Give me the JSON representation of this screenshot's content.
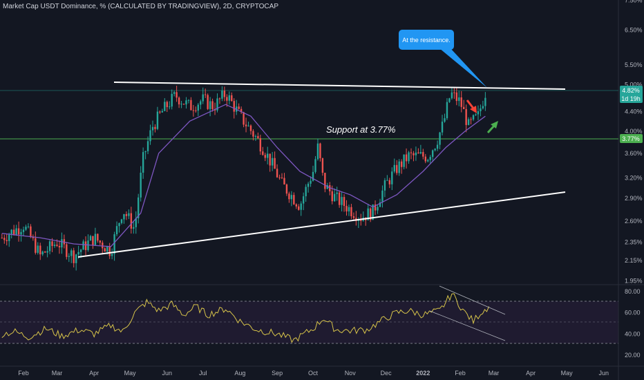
{
  "header": {
    "title": "Market Cap USDT Dominance, % (CALCULATED BY TRADINGVIEW), 2D, CRYPTOCAP"
  },
  "colors": {
    "background": "#131722",
    "up": "#26a69a",
    "down": "#ef5350",
    "ma": "#7e57c2",
    "rsi": "#d7c44a",
    "trendline": "#ffffff",
    "support_line": "#4caf50",
    "callout": "#2196f3"
  },
  "chart_data": [
    {
      "type": "candlestick",
      "title": "Market Cap USDT Dominance, % (CALCULATED BY TRADINGVIEW), 2D, CRYPTOCAP",
      "price_axis_labels": [
        "7.50%",
        "6.50%",
        "5.50%",
        "5.00%",
        "4.40%",
        "4.00%",
        "3.60%",
        "3.20%",
        "2.90%",
        "2.60%",
        "2.35%",
        "2.15%",
        "1.95%"
      ],
      "price_ticks": [
        7.5,
        6.5,
        5.5,
        5.0,
        4.4,
        4.0,
        3.6,
        3.2,
        2.9,
        2.6,
        2.35,
        2.15,
        1.95
      ],
      "x_tick_labels": [
        "Feb",
        "Mar",
        "Apr",
        "May",
        "Jun",
        "Jul",
        "Aug",
        "Sep",
        "Oct",
        "Nov",
        "Dec",
        "2022",
        "Feb",
        "Mar",
        "Apr",
        "May",
        "Jun"
      ],
      "x_ticks": [
        "2021-02-01",
        "2021-03-01",
        "2021-04-01",
        "2021-05-01",
        "2021-06-01",
        "2021-07-01",
        "2021-08-01",
        "2021-09-01",
        "2021-10-01",
        "2021-11-01",
        "2021-12-01",
        "2022-01-01",
        "2022-02-01",
        "2022-03-01",
        "2022-04-01",
        "2022-05-01",
        "2022-06-01"
      ],
      "close_path": [
        [
          "2021-01-14",
          2.4
        ],
        [
          "2021-02-01",
          2.55
        ],
        [
          "2021-02-15",
          2.2
        ],
        [
          "2021-03-01",
          2.35
        ],
        [
          "2021-03-15",
          2.2
        ],
        [
          "2021-04-01",
          2.4
        ],
        [
          "2021-04-15",
          2.25
        ],
        [
          "2021-04-25",
          2.75
        ],
        [
          "2021-05-05",
          2.5
        ],
        [
          "2021-05-12",
          3.5
        ],
        [
          "2021-05-20",
          4.1
        ],
        [
          "2021-05-28",
          4.4
        ],
        [
          "2021-06-08",
          4.75
        ],
        [
          "2021-06-20",
          4.5
        ],
        [
          "2021-07-01",
          4.65
        ],
        [
          "2021-07-10",
          4.5
        ],
        [
          "2021-07-20",
          4.8
        ],
        [
          "2021-08-01",
          4.3
        ],
        [
          "2021-08-20",
          3.7
        ],
        [
          "2021-09-05",
          3.1
        ],
        [
          "2021-09-20",
          2.8
        ],
        [
          "2021-10-01",
          3.3
        ],
        [
          "2021-10-05",
          3.7
        ],
        [
          "2021-10-10",
          3.1
        ],
        [
          "2021-10-20",
          2.9
        ],
        [
          "2021-11-01",
          2.75
        ],
        [
          "2021-11-10",
          2.65
        ],
        [
          "2021-11-20",
          2.72
        ],
        [
          "2021-12-01",
          3.1
        ],
        [
          "2021-12-10",
          3.35
        ],
        [
          "2021-12-20",
          3.55
        ],
        [
          "2022-01-05",
          3.55
        ],
        [
          "2022-01-12",
          3.8
        ],
        [
          "2022-01-18",
          4.15
        ],
        [
          "2022-01-24",
          4.8
        ],
        [
          "2022-02-01",
          4.6
        ],
        [
          "2022-02-08",
          4.1
        ],
        [
          "2022-02-16",
          4.3
        ],
        [
          "2022-02-22",
          4.82
        ]
      ],
      "moving_average": [
        [
          "2021-01-14",
          2.45
        ],
        [
          "2021-02-15",
          2.4
        ],
        [
          "2021-03-15",
          2.33
        ],
        [
          "2021-04-15",
          2.3
        ],
        [
          "2021-05-10",
          2.7
        ],
        [
          "2021-05-25",
          3.6
        ],
        [
          "2021-06-20",
          4.2
        ],
        [
          "2021-07-20",
          4.55
        ],
        [
          "2021-08-10",
          4.3
        ],
        [
          "2021-09-01",
          3.7
        ],
        [
          "2021-09-20",
          3.3
        ],
        [
          "2021-10-15",
          3.05
        ],
        [
          "2021-11-01",
          2.95
        ],
        [
          "2021-11-20",
          2.78
        ],
        [
          "2021-12-10",
          2.95
        ],
        [
          "2022-01-01",
          3.3
        ],
        [
          "2022-01-20",
          3.7
        ],
        [
          "2022-02-05",
          4.0
        ],
        [
          "2022-02-22",
          4.3
        ]
      ],
      "last_price": "4.82%",
      "countdown": "1d 19h",
      "support_label": "3.77%",
      "annotations": {
        "support_text": "Support at 3.77%",
        "callout_text": "At the resistance."
      }
    },
    {
      "type": "line",
      "name": "RSI",
      "y_axis_labels": [
        "80.00",
        "60.00",
        "40.00",
        "20.00"
      ],
      "y_ticks": [
        80,
        60,
        40,
        20
      ],
      "band": [
        30,
        70
      ],
      "points": [
        [
          "2021-01-14",
          40
        ],
        [
          "2021-01-25",
          42
        ],
        [
          "2021-02-05",
          37
        ],
        [
          "2021-02-20",
          45
        ],
        [
          "2021-03-05",
          38
        ],
        [
          "2021-03-20",
          44
        ],
        [
          "2021-04-01",
          40
        ],
        [
          "2021-04-15",
          48
        ],
        [
          "2021-04-25",
          42
        ],
        [
          "2021-05-05",
          60
        ],
        [
          "2021-05-15",
          70
        ],
        [
          "2021-05-25",
          62
        ],
        [
          "2021-06-05",
          68
        ],
        [
          "2021-06-15",
          58
        ],
        [
          "2021-06-25",
          66
        ],
        [
          "2021-07-05",
          58
        ],
        [
          "2021-07-20",
          64
        ],
        [
          "2021-08-01",
          52
        ],
        [
          "2021-08-15",
          44
        ],
        [
          "2021-09-01",
          40
        ],
        [
          "2021-09-15",
          34
        ],
        [
          "2021-10-01",
          45
        ],
        [
          "2021-10-10",
          55
        ],
        [
          "2021-10-20",
          44
        ],
        [
          "2021-11-01",
          43
        ],
        [
          "2021-11-15",
          44
        ],
        [
          "2021-12-01",
          55
        ],
        [
          "2021-12-10",
          60
        ],
        [
          "2021-12-20",
          62
        ],
        [
          "2022-01-01",
          58
        ],
        [
          "2022-01-15",
          62
        ],
        [
          "2022-01-25",
          78
        ],
        [
          "2022-02-05",
          60
        ],
        [
          "2022-02-12",
          52
        ],
        [
          "2022-02-18",
          60
        ],
        [
          "2022-02-25",
          66
        ]
      ]
    }
  ]
}
